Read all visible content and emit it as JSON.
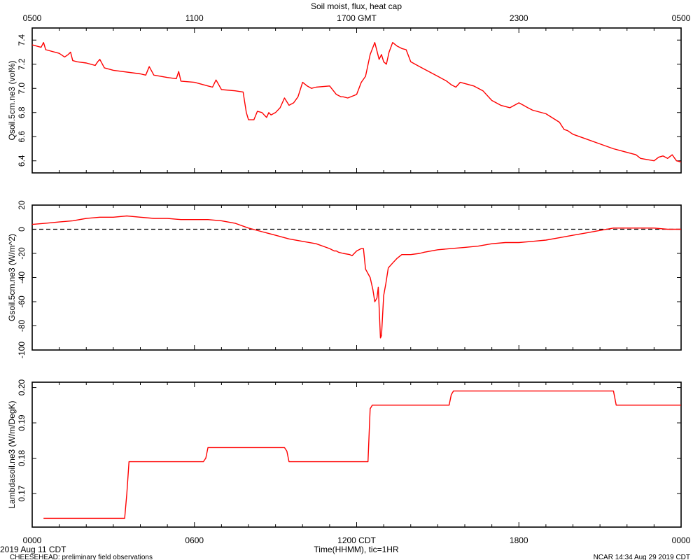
{
  "title": "Soil moist, flux, heat cap",
  "top_axis": {
    "ticks": [
      {
        "label": "0500",
        "x": 0
      },
      {
        "label": "1100",
        "x": 6
      },
      {
        "label": "1700 GMT",
        "x": 12
      },
      {
        "label": "2300",
        "x": 18
      },
      {
        "label": "0500",
        "x": 24
      }
    ]
  },
  "bottom_axis": {
    "label": "Time(HHMM), tic=1HR",
    "ticks": [
      {
        "label": "0000",
        "x": 0
      },
      {
        "label": "0600",
        "x": 6
      },
      {
        "label": "1200 CDT",
        "x": 12
      },
      {
        "label": "1800",
        "x": 18
      },
      {
        "label": "0000",
        "x": 24
      }
    ]
  },
  "footer": {
    "date": "2019 Aug 11 CDT",
    "note": "CHEESEHEAD: preliminary field observations",
    "credit": "NCAR 14:34 Aug 29 2019 CDT"
  },
  "colors": {
    "series": "#ff0000",
    "axis": "#000000",
    "zero_line": "#000000"
  },
  "chart_data": [
    {
      "type": "line",
      "ylabel": "Qsoil.5cm.ne3 (vol%)",
      "xlim": [
        0,
        24
      ],
      "ylim": [
        6.3,
        7.5
      ],
      "yticks": [
        6.4,
        6.6,
        6.8,
        7.0,
        7.2,
        7.4
      ],
      "ytick_labels": [
        "6.4",
        "6.6",
        "6.8",
        "7.0",
        "7.2",
        "7.4"
      ],
      "series": [
        {
          "x": [
            0.0,
            0.33,
            0.42,
            0.5,
            1.0,
            1.2,
            1.33,
            1.42,
            1.5,
            1.67,
            2.0,
            2.33,
            2.42,
            2.5,
            2.67,
            3.0,
            4.0,
            4.2,
            4.33,
            4.5,
            5.0,
            5.33,
            5.42,
            5.5,
            6.0,
            6.5,
            6.67,
            6.8,
            7.0,
            7.5,
            7.8,
            7.92,
            8.0,
            8.2,
            8.33,
            8.5,
            8.58,
            8.67,
            8.75,
            8.83,
            9.0,
            9.17,
            9.33,
            9.5,
            9.67,
            9.83,
            10.0,
            10.17,
            10.33,
            10.5,
            11.0,
            11.25,
            11.42,
            11.5,
            11.67,
            12.0,
            12.17,
            12.33,
            12.5,
            12.67,
            12.83,
            12.92,
            13.0,
            13.1,
            13.2,
            13.33,
            13.5,
            13.67,
            13.83,
            14.0,
            14.33,
            15.0,
            15.33,
            15.5,
            15.67,
            15.83,
            16.33,
            16.67,
            17.0,
            17.33,
            17.67,
            18.0,
            18.17,
            18.33,
            18.5,
            19.0,
            19.5,
            19.67,
            19.8,
            20.0,
            20.5,
            21.0,
            21.5,
            22.0,
            22.33,
            22.5,
            23.0,
            23.17,
            23.33,
            23.5,
            23.67,
            23.83,
            24.0
          ],
          "y": [
            7.36,
            7.34,
            7.38,
            7.32,
            7.29,
            7.26,
            7.28,
            7.3,
            7.23,
            7.22,
            7.21,
            7.19,
            7.22,
            7.24,
            7.17,
            7.15,
            7.12,
            7.11,
            7.18,
            7.11,
            7.09,
            7.08,
            7.14,
            7.06,
            7.05,
            7.02,
            7.01,
            7.07,
            6.99,
            6.98,
            6.97,
            6.8,
            6.74,
            6.74,
            6.81,
            6.8,
            6.78,
            6.76,
            6.8,
            6.78,
            6.8,
            6.84,
            6.92,
            6.86,
            6.88,
            6.93,
            7.05,
            7.02,
            7.0,
            7.01,
            7.02,
            6.95,
            6.93,
            6.93,
            6.92,
            6.95,
            7.05,
            7.1,
            7.28,
            7.38,
            7.24,
            7.28,
            7.22,
            7.2,
            7.3,
            7.38,
            7.35,
            7.33,
            7.32,
            7.22,
            7.18,
            7.1,
            7.06,
            7.03,
            7.01,
            7.05,
            7.02,
            6.98,
            6.9,
            6.86,
            6.84,
            6.88,
            6.86,
            6.84,
            6.82,
            6.79,
            6.72,
            6.66,
            6.65,
            6.62,
            6.58,
            6.54,
            6.5,
            6.47,
            6.45,
            6.42,
            6.4,
            6.43,
            6.44,
            6.42,
            6.45,
            6.4,
            6.39
          ]
        }
      ]
    },
    {
      "type": "line",
      "ylabel": "Gsoil.5cm.ne3 (W/m^2)",
      "xlim": [
        0,
        24
      ],
      "ylim": [
        -100,
        20
      ],
      "yticks": [
        -100,
        -80,
        -60,
        -40,
        -20,
        0,
        20
      ],
      "ytick_labels": [
        "-100",
        "-80",
        "-60",
        "-40",
        "-20",
        "0",
        "20"
      ],
      "zero_line": 0,
      "series": [
        {
          "x": [
            0.0,
            0.5,
            1.0,
            1.5,
            2.0,
            2.5,
            3.0,
            3.5,
            4.0,
            4.5,
            5.0,
            5.5,
            6.0,
            6.5,
            7.0,
            7.5,
            8.0,
            8.5,
            9.0,
            9.5,
            10.0,
            10.5,
            11.0,
            11.17,
            11.25,
            11.33,
            11.5,
            11.75,
            11.83,
            12.0,
            12.17,
            12.25,
            12.33,
            12.5,
            12.6,
            12.67,
            12.75,
            12.8,
            12.88,
            12.92,
            13.0,
            13.08,
            13.17,
            13.33,
            13.5,
            13.67,
            14.0,
            14.33,
            14.5,
            15.0,
            15.5,
            16.0,
            16.5,
            17.0,
            17.5,
            18.0,
            18.5,
            19.0,
            19.5,
            20.0,
            20.5,
            21.0,
            21.5,
            22.0,
            22.5,
            23.0,
            23.5,
            24.0
          ],
          "y": [
            4,
            5,
            6,
            7,
            9,
            10,
            10,
            11,
            10,
            9,
            9,
            8,
            8,
            8,
            7,
            5,
            1,
            -2,
            -5,
            -8,
            -10,
            -12,
            -16,
            -18,
            -18,
            -19,
            -20,
            -21,
            -22,
            -18,
            -16,
            -16,
            -33,
            -40,
            -50,
            -60,
            -57,
            -48,
            -90,
            -88,
            -55,
            -45,
            -32,
            -28,
            -24,
            -21,
            -21,
            -20,
            -19,
            -17,
            -16,
            -15,
            -14,
            -12,
            -11,
            -11,
            -10,
            -9,
            -7,
            -5,
            -3,
            -1,
            1,
            1,
            1,
            1,
            0,
            0
          ]
        }
      ]
    },
    {
      "type": "line",
      "ylabel": "Lambdasoil.ne3 (W/m/DegK)",
      "xlabel": "Time(HHMM), tic=1HR",
      "xlim": [
        0,
        24
      ],
      "ylim": [
        0.1605,
        0.2015
      ],
      "yticks": [
        0.17,
        0.18,
        0.19,
        0.2
      ],
      "ytick_labels": [
        "0.17",
        "0.18",
        "0.19",
        "0.20"
      ],
      "series": [
        {
          "x": [
            0.42,
            3.42,
            3.5,
            3.58,
            6.33,
            6.42,
            6.5,
            9.33,
            9.42,
            9.5,
            12.42,
            12.5,
            12.58,
            15.42,
            15.5,
            15.58,
            21.5,
            21.6,
            24.0
          ],
          "y": [
            0.163,
            0.163,
            0.17,
            0.179,
            0.179,
            0.18,
            0.183,
            0.183,
            0.182,
            0.179,
            0.179,
            0.194,
            0.195,
            0.195,
            0.198,
            0.199,
            0.199,
            0.195,
            0.195
          ]
        }
      ]
    }
  ]
}
